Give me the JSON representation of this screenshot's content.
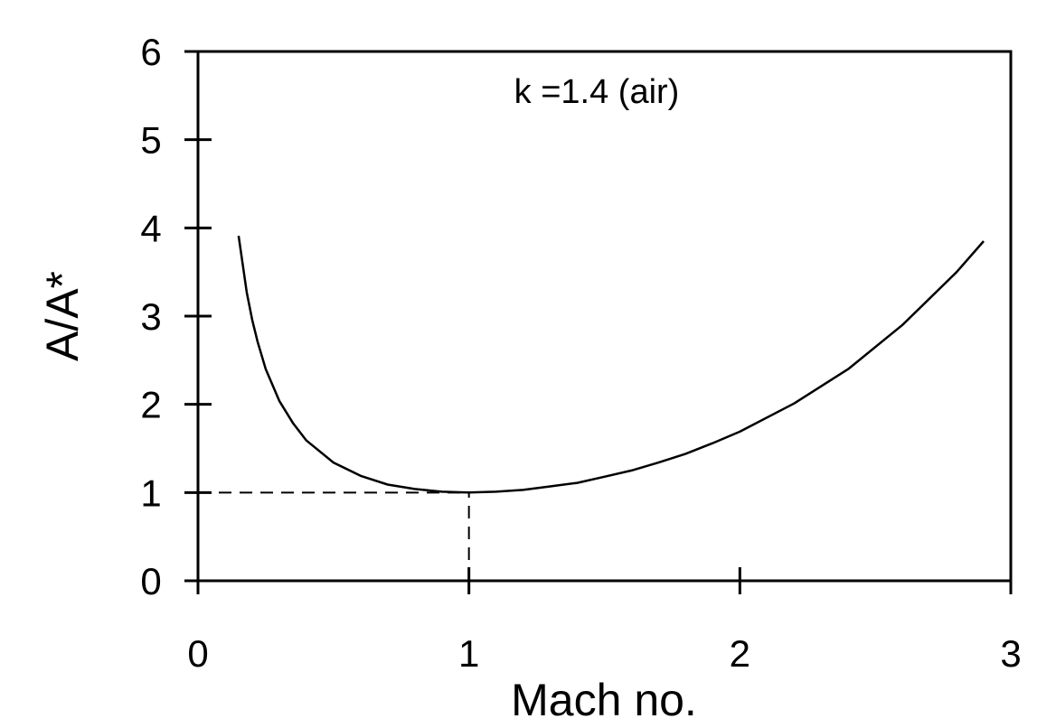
{
  "chart_data": {
    "type": "line",
    "title": "",
    "xlabel": "Mach no.",
    "ylabel": "A/A*",
    "xlim": [
      0,
      3
    ],
    "ylim": [
      0,
      6
    ],
    "x_ticks": [
      0,
      1,
      2,
      3
    ],
    "y_ticks": [
      0,
      1,
      2,
      3,
      4,
      5,
      6
    ],
    "grid": false,
    "legend": "none",
    "annotation": "k =1.4  (air)",
    "series": [
      {
        "name": "",
        "color": "#000000",
        "x": [
          0.15,
          0.18,
          0.2,
          0.22,
          0.25,
          0.3,
          0.35,
          0.4,
          0.5,
          0.6,
          0.7,
          0.8,
          0.9,
          1.0,
          1.1,
          1.2,
          1.3,
          1.4,
          1.5,
          1.6,
          1.7,
          1.8,
          1.9,
          2.0,
          2.2,
          2.4,
          2.6,
          2.8,
          2.9
        ],
        "y": [
          3.91,
          3.27,
          2.96,
          2.71,
          2.4,
          2.04,
          1.79,
          1.59,
          1.34,
          1.19,
          1.09,
          1.04,
          1.01,
          1.0,
          1.01,
          1.03,
          1.07,
          1.11,
          1.18,
          1.25,
          1.34,
          1.44,
          1.56,
          1.69,
          2.01,
          2.4,
          2.9,
          3.5,
          3.85
        ]
      }
    ],
    "reference_lines": [
      {
        "type": "horizontal",
        "y": 1,
        "x_from": 0,
        "x_to": 1,
        "style": "dashed"
      },
      {
        "type": "vertical",
        "x": 1,
        "y_from": 0,
        "y_to": 1,
        "style": "dashed"
      }
    ]
  }
}
